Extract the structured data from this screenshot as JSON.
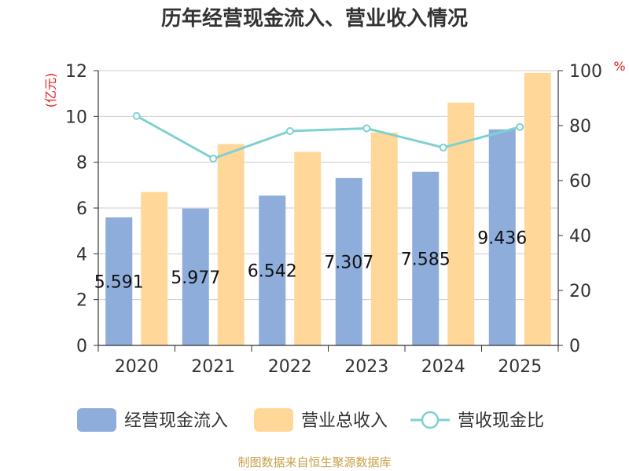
{
  "chart_data": {
    "type": "bar",
    "title": "历年经营现金流入、营业收入情况",
    "categories": [
      "2020",
      "2021",
      "2022",
      "2023",
      "2024",
      "2025"
    ],
    "y_left": {
      "unit": "(亿元)",
      "ticks": [
        "0",
        "2",
        "4",
        "6",
        "8",
        "10",
        "12"
      ],
      "ylim": [
        0,
        12
      ]
    },
    "y_right": {
      "unit": "%",
      "ticks": [
        "0",
        "20",
        "40",
        "60",
        "80",
        "100"
      ],
      "ylim": [
        0,
        100
      ]
    },
    "series": [
      {
        "name": "经营现金流入",
        "type": "bar",
        "axis": "left",
        "color": "#8eaddb",
        "values": [
          5.591,
          5.977,
          6.542,
          7.307,
          7.585,
          9.436
        ],
        "labels": [
          "5.591",
          "5.977",
          "6.542",
          "7.307",
          "7.585",
          "9.436"
        ]
      },
      {
        "name": "营业总收入",
        "type": "bar",
        "axis": "left",
        "color": "#ffd899",
        "values": [
          6.7,
          8.8,
          8.45,
          9.3,
          10.6,
          11.9
        ]
      },
      {
        "name": "营收现金比",
        "type": "line",
        "axis": "right",
        "color": "#7fd0d3",
        "values": [
          83.5,
          68,
          78,
          79,
          72,
          79.5
        ]
      }
    ],
    "grid": true,
    "legend_position": "bottom"
  },
  "source": "制图数据来自恒生聚源数据库"
}
